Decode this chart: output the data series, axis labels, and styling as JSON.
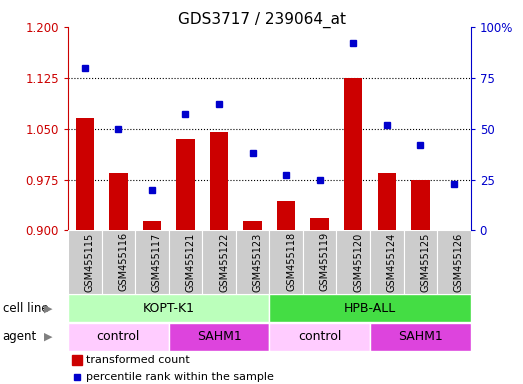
{
  "title": "GDS3717 / 239064_at",
  "samples": [
    "GSM455115",
    "GSM455116",
    "GSM455117",
    "GSM455121",
    "GSM455122",
    "GSM455123",
    "GSM455118",
    "GSM455119",
    "GSM455120",
    "GSM455124",
    "GSM455125",
    "GSM455126"
  ],
  "transformed_count": [
    1.065,
    0.984,
    0.914,
    1.035,
    1.045,
    0.914,
    0.944,
    0.919,
    1.125,
    0.985,
    0.974,
    0.901
  ],
  "percentile_rank": [
    80,
    50,
    20,
    57,
    62,
    38,
    27,
    25,
    92,
    52,
    42,
    23
  ],
  "bar_color": "#cc0000",
  "dot_color": "#0000cc",
  "ylim_left": [
    0.9,
    1.2
  ],
  "ylim_right": [
    0,
    100
  ],
  "yticks_left": [
    0.9,
    0.975,
    1.05,
    1.125,
    1.2
  ],
  "yticks_right": [
    0,
    25,
    50,
    75,
    100
  ],
  "cell_line_groups": [
    {
      "label": "KOPT-K1",
      "start": 0,
      "end": 6,
      "color": "#bbffbb"
    },
    {
      "label": "HPB-ALL",
      "start": 6,
      "end": 12,
      "color": "#44dd44"
    }
  ],
  "agent_groups": [
    {
      "label": "control",
      "start": 0,
      "end": 3,
      "color": "#ffccff"
    },
    {
      "label": "SAHM1",
      "start": 3,
      "end": 6,
      "color": "#dd44dd"
    },
    {
      "label": "control",
      "start": 6,
      "end": 9,
      "color": "#ffccff"
    },
    {
      "label": "SAHM1",
      "start": 9,
      "end": 12,
      "color": "#dd44dd"
    }
  ],
  "legend_bar_label": "transformed count",
  "legend_dot_label": "percentile rank within the sample",
  "cell_line_label": "cell line",
  "agent_label": "agent",
  "tick_color_left": "#cc0000",
  "tick_color_right": "#0000cc",
  "xtick_bg": "#cccccc",
  "bar_width": 0.55
}
